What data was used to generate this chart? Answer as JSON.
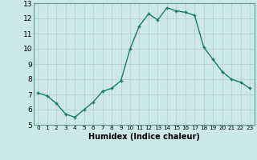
{
  "x": [
    0,
    1,
    2,
    3,
    4,
    5,
    6,
    7,
    8,
    9,
    10,
    11,
    12,
    13,
    14,
    15,
    16,
    17,
    18,
    19,
    20,
    21,
    22,
    23
  ],
  "y": [
    7.1,
    6.9,
    6.4,
    5.7,
    5.5,
    6.0,
    6.5,
    7.2,
    7.4,
    7.9,
    10.0,
    11.5,
    12.3,
    11.9,
    12.7,
    12.5,
    12.4,
    12.2,
    10.1,
    9.3,
    8.5,
    8.0,
    7.8,
    7.4
  ],
  "line_color": "#1a7a6e",
  "marker_color": "#1a7a6e",
  "bg_color": "#cce8e8",
  "grid_major_color": "#b0c8c8",
  "grid_minor_color": "#d8e8e8",
  "xlabel": "Humidex (Indice chaleur)",
  "xlim": [
    -0.5,
    23.5
  ],
  "ylim": [
    5,
    13
  ],
  "yticks": [
    5,
    6,
    7,
    8,
    9,
    10,
    11,
    12,
    13
  ],
  "xtick_labels": [
    "0",
    "1",
    "2",
    "3",
    "4",
    "5",
    "6",
    "7",
    "8",
    "9",
    "10",
    "11",
    "12",
    "13",
    "14",
    "15",
    "16",
    "17",
    "18",
    "19",
    "20",
    "21",
    "22",
    "23"
  ]
}
